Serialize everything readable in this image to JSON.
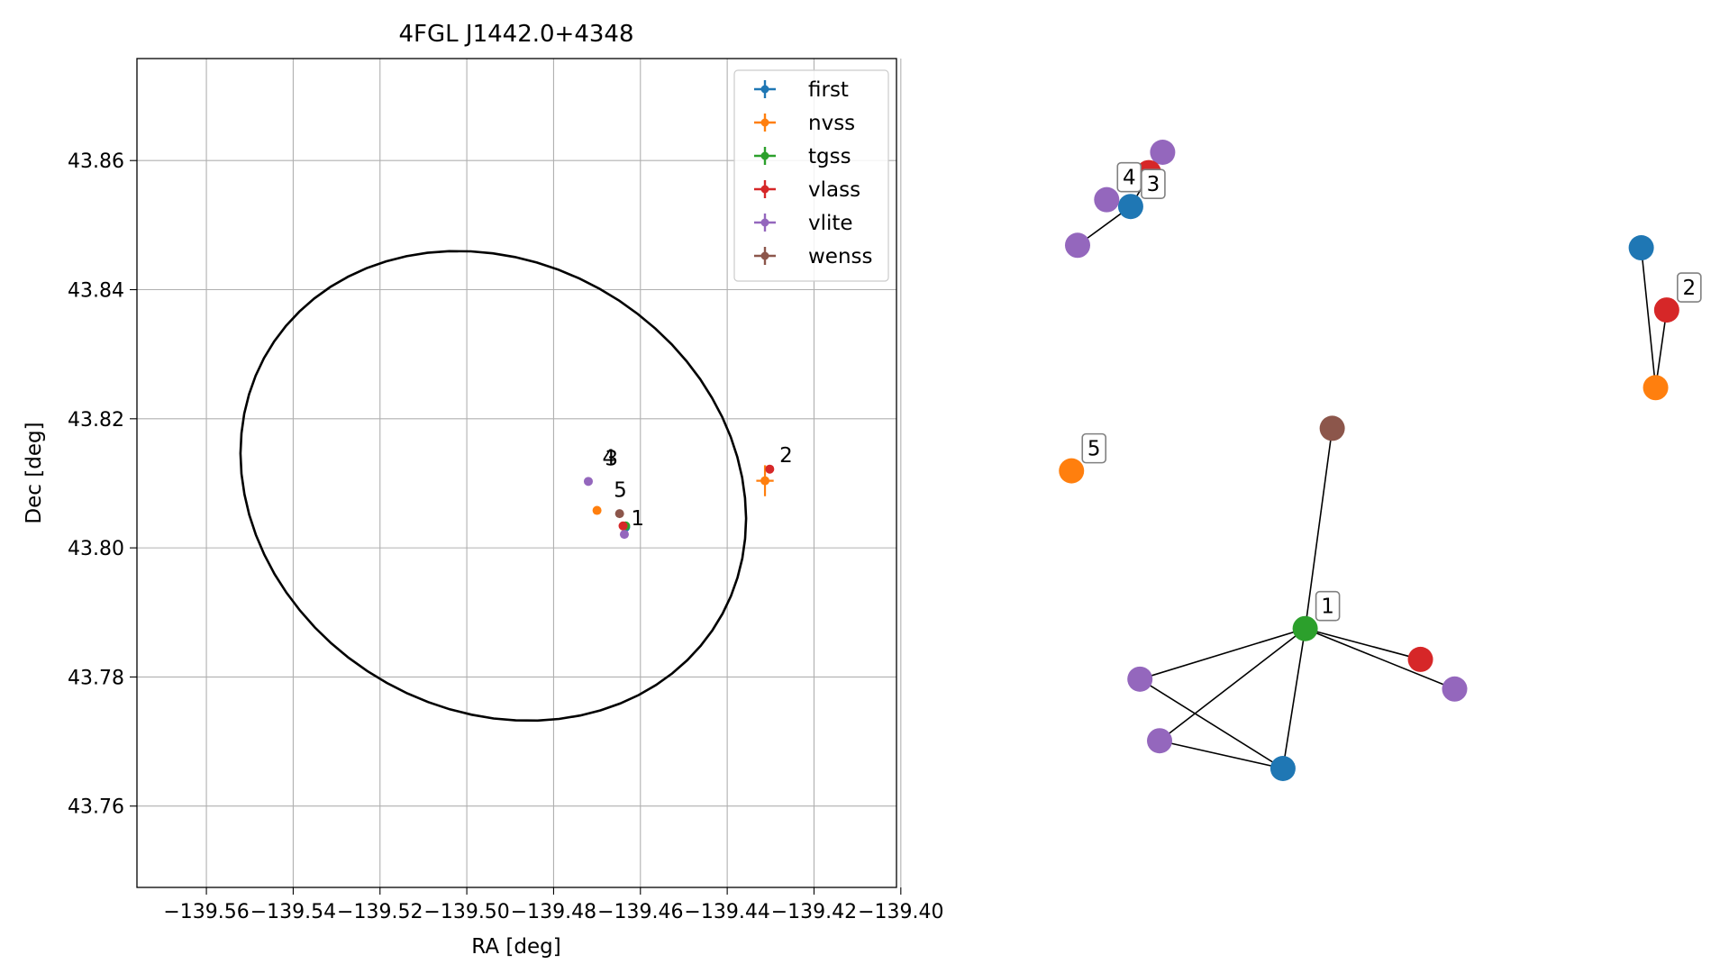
{
  "chart_data": [
    {
      "type": "scatter",
      "title": "4FGL J1442.0+4348",
      "xlabel": "RA [deg]",
      "ylabel": "Dec [deg]",
      "xlim": [
        -139.576,
        -139.401
      ],
      "ylim": [
        43.7474,
        43.8758
      ],
      "xticks": [
        -139.56,
        -139.54,
        -139.52,
        -139.5,
        -139.48,
        -139.46,
        -139.44,
        -139.42,
        -139.4
      ],
      "xtick_labels": [
        "−139.56",
        "−139.54",
        "−139.52",
        "−139.50",
        "−139.48",
        "−139.46",
        "−139.44",
        "−139.42",
        "−139.40"
      ],
      "yticks": [
        43.76,
        43.78,
        43.8,
        43.82,
        43.84,
        43.86
      ],
      "ytick_labels": [
        "43.76",
        "43.78",
        "43.80",
        "43.82",
        "43.84",
        "43.86"
      ],
      "grid": true,
      "legend_position": "top-right",
      "ellipse": {
        "center": [
          -139.4939,
          43.8096
        ],
        "semi_axis_ra": 0.0586,
        "semi_axis_dec": 0.0358,
        "angle_deg": -8,
        "color": "#000000"
      },
      "series": [
        {
          "name": "first",
          "color": "#1f77b4",
          "points": [
            {
              "x": -139.4634,
              "y": 43.8032,
              "xerr": 0.0002,
              "yerr": 0.0002
            }
          ]
        },
        {
          "name": "nvss",
          "color": "#ff7f0e",
          "points": [
            {
              "x": -139.47,
              "y": 43.8058,
              "xerr": 0.0004,
              "yerr": 0.0004
            },
            {
              "x": -139.4313,
              "y": 43.8104,
              "xerr": 0.002,
              "yerr": 0.0024
            }
          ]
        },
        {
          "name": "tgss",
          "color": "#2ca02c",
          "points": [
            {
              "x": -139.4634,
              "y": 43.8034,
              "xerr": 0.0004,
              "yerr": 0.0004
            }
          ]
        },
        {
          "name": "vlass",
          "color": "#d62728",
          "points": [
            {
              "x": -139.4302,
              "y": 43.8122,
              "xerr": 0.0003,
              "yerr": 0.0003
            },
            {
              "x": -139.464,
              "y": 43.8034,
              "xerr": 0.0002,
              "yerr": 0.0002
            }
          ]
        },
        {
          "name": "vlite",
          "color": "#9467bd",
          "points": [
            {
              "x": -139.472,
              "y": 43.8103,
              "xerr": 0.0003,
              "yerr": 0.0003
            },
            {
              "x": -139.4637,
              "y": 43.8021,
              "xerr": 0.0003,
              "yerr": 0.0003
            }
          ]
        },
        {
          "name": "wenss",
          "color": "#8c564b",
          "points": [
            {
              "x": -139.4648,
              "y": 43.8053,
              "xerr": 0.0005,
              "yerr": 0.0005
            }
          ]
        }
      ],
      "annotations": [
        {
          "text": "1",
          "x": -139.463,
          "y": 43.8035
        },
        {
          "text": "2",
          "x": -139.4288,
          "y": 43.8133
        },
        {
          "text": "3",
          "x": -139.469,
          "y": 43.8128
        },
        {
          "text": "4",
          "x": -139.4696,
          "y": 43.8129
        },
        {
          "text": "5",
          "x": -139.467,
          "y": 43.8079
        }
      ]
    },
    {
      "type": "network",
      "nodes": [
        {
          "id": "n1",
          "x": 0.0854,
          "y": 0.912,
          "color": "#1f77b4"
        },
        {
          "id": "n2",
          "x": 0.0,
          "y": 0.849,
          "color": "#9467bd"
        },
        {
          "id": "n3",
          "x": 0.1368,
          "y": 1.0,
          "color": "#9467bd"
        },
        {
          "id": "n4",
          "x": 0.1145,
          "y": 0.967,
          "color": "#d62728"
        },
        {
          "id": "n5",
          "x": 0.0468,
          "y": 0.923,
          "color": "#9467bd"
        },
        {
          "id": "n6",
          "x": 0.9067,
          "y": 0.845,
          "color": "#1f77b4"
        },
        {
          "id": "n7",
          "x": 0.9298,
          "y": 0.618,
          "color": "#ff7f0e"
        },
        {
          "id": "n8",
          "x": 0.9476,
          "y": 0.744,
          "color": "#d62728"
        },
        {
          "id": "n9",
          "x": -0.0098,
          "y": 0.483,
          "color": "#ff7f0e"
        },
        {
          "id": "n10",
          "x": 0.3661,
          "y": 0.227,
          "color": "#2ca02c"
        },
        {
          "id": "n11",
          "x": 0.4096,
          "y": 0.552,
          "color": "#8c564b"
        },
        {
          "id": "n12",
          "x": 0.1003,
          "y": 0.145,
          "color": "#9467bd"
        },
        {
          "id": "n13",
          "x": 0.1319,
          "y": 0.045,
          "color": "#9467bd"
        },
        {
          "id": "n14",
          "x": 0.3303,
          "y": 0.0,
          "color": "#1f77b4"
        },
        {
          "id": "n15",
          "x": 0.5515,
          "y": 0.177,
          "color": "#d62728"
        },
        {
          "id": "n16",
          "x": 0.6065,
          "y": 0.129,
          "color": "#9467bd"
        }
      ],
      "edges": [
        [
          "n2",
          "n1"
        ],
        [
          "n1",
          "n3"
        ],
        [
          "n4",
          "n3"
        ],
        [
          "n6",
          "n7"
        ],
        [
          "n7",
          "n8"
        ],
        [
          "n10",
          "n11"
        ],
        [
          "n10",
          "n12"
        ],
        [
          "n10",
          "n13"
        ],
        [
          "n10",
          "n14"
        ],
        [
          "n10",
          "n15"
        ],
        [
          "n10",
          "n16"
        ],
        [
          "n12",
          "n14"
        ],
        [
          "n13",
          "n14"
        ]
      ],
      "labels": [
        {
          "text": "4",
          "node": "n5"
        },
        {
          "text": "3",
          "node": "n1"
        },
        {
          "text": "2",
          "node": "n8"
        },
        {
          "text": "5",
          "node": "n9"
        },
        {
          "text": "1",
          "node": "n10"
        }
      ]
    }
  ]
}
